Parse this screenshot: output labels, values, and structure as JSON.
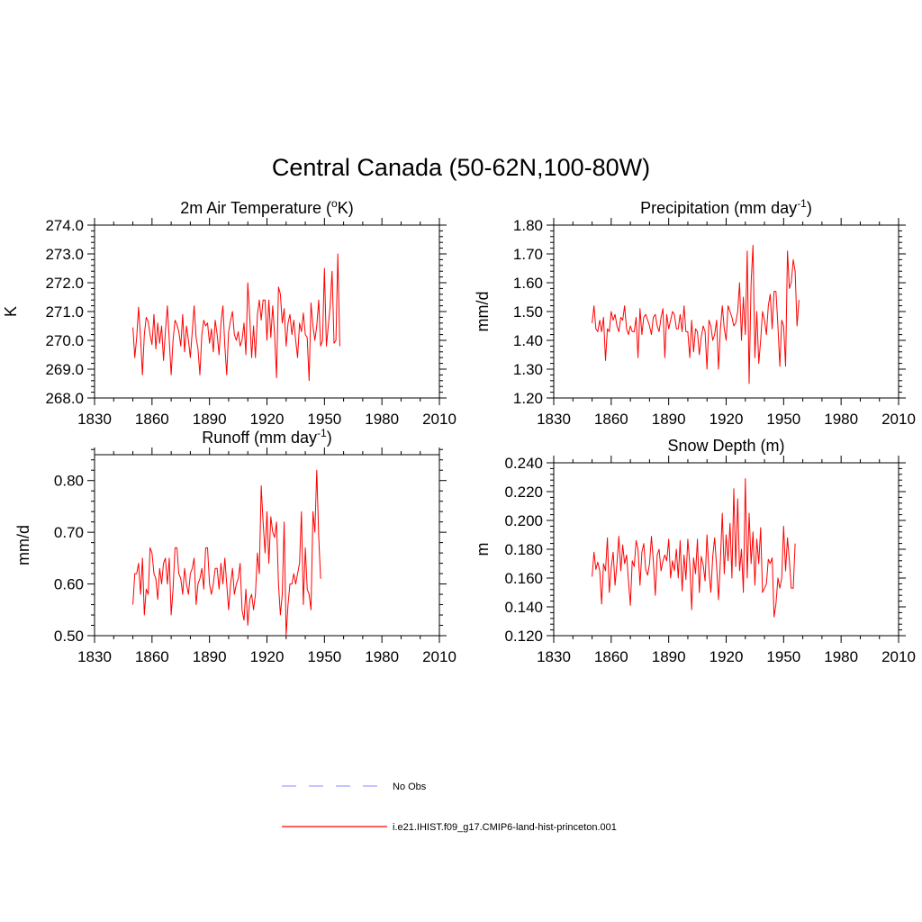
{
  "figure": {
    "title": "Central Canada (50-62N,100-80W)"
  },
  "legend": {
    "items": [
      {
        "label": "No Obs",
        "color": "#a0a0ff",
        "style": "dashed"
      },
      {
        "label": "i.e21.IHIST.f09_g17.CMIP6-land-hist-princeton.001",
        "color": "#ff0000",
        "style": "solid"
      }
    ]
  },
  "chart_data": [
    {
      "type": "line",
      "title_text": "2m Air Temperature (",
      "title_sup": "o",
      "title_suffix": "K)",
      "ylabel": "K",
      "xlim": [
        1830,
        2010
      ],
      "ylim": [
        268.0,
        274.0
      ],
      "xticks": [
        1830,
        1860,
        1890,
        1920,
        1950,
        1980,
        2010
      ],
      "yticks": [
        "268.0",
        "269.0",
        "270.0",
        "271.0",
        "272.0",
        "273.0",
        "274.0"
      ],
      "grid": false,
      "series": [
        {
          "color": "#ff0000",
          "x_start": 1850,
          "values": [
            270.45,
            269.4,
            270.1,
            271.15,
            270.1,
            268.8,
            270.2,
            270.8,
            270.65,
            270.2,
            269.85,
            270.9,
            269.7,
            270.6,
            269.9,
            270.5,
            269.3,
            270.3,
            271.2,
            270.0,
            268.8,
            270.0,
            270.7,
            270.55,
            270.3,
            269.8,
            270.9,
            269.6,
            270.5,
            270.0,
            269.4,
            270.3,
            271.2,
            270.1,
            269.7,
            268.8,
            270.2,
            270.7,
            270.5,
            270.6,
            269.9,
            270.4,
            269.6,
            270.7,
            270.2,
            269.5,
            270.6,
            271.2,
            269.8,
            268.8,
            270.3,
            270.7,
            271.0,
            270.2,
            270.0,
            270.3,
            269.8,
            270.0,
            270.6,
            269.5,
            272.0,
            270.8,
            269.4,
            270.5,
            269.4,
            270.9,
            271.4,
            270.7,
            271.4,
            271.4,
            270.0,
            271.4,
            270.1,
            271.2,
            270.2,
            268.7,
            271.85,
            271.6,
            270.6,
            271.1,
            269.8,
            270.6,
            270.9,
            270.2,
            270.7,
            270.0,
            269.4,
            270.6,
            270.3,
            270.95,
            270.2,
            270.1,
            268.6,
            271.3,
            270.5,
            270.0,
            270.5,
            271.4,
            269.8,
            270.0,
            272.5,
            269.8,
            270.5,
            271.2,
            272.4,
            269.9,
            270.0,
            273.0,
            269.8
          ]
        }
      ]
    },
    {
      "type": "line",
      "title_text": "Precipitation (mm day",
      "title_sup": "-1",
      "title_suffix": ")",
      "ylabel": "mm/d",
      "xlim": [
        1830,
        2010
      ],
      "ylim": [
        1.2,
        1.8
      ],
      "xticks": [
        1830,
        1860,
        1890,
        1920,
        1950,
        1980,
        2010
      ],
      "yticks": [
        "1.20",
        "1.30",
        "1.40",
        "1.50",
        "1.60",
        "1.70",
        "1.80"
      ],
      "grid": false,
      "series": [
        {
          "color": "#ff0000",
          "x_start": 1850,
          "values": [
            1.46,
            1.52,
            1.44,
            1.43,
            1.47,
            1.43,
            1.48,
            1.33,
            1.44,
            1.43,
            1.5,
            1.47,
            1.49,
            1.45,
            1.43,
            1.48,
            1.47,
            1.52,
            1.44,
            1.42,
            1.45,
            1.43,
            1.43,
            1.48,
            1.34,
            1.51,
            1.42,
            1.48,
            1.49,
            1.47,
            1.45,
            1.42,
            1.48,
            1.49,
            1.45,
            1.43,
            1.48,
            1.51,
            1.34,
            1.49,
            1.44,
            1.47,
            1.5,
            1.49,
            1.44,
            1.44,
            1.49,
            1.43,
            1.52,
            1.43,
            1.43,
            1.34,
            1.47,
            1.36,
            1.44,
            1.43,
            1.35,
            1.41,
            1.45,
            1.43,
            1.3,
            1.47,
            1.45,
            1.4,
            1.42,
            1.47,
            1.3,
            1.44,
            1.52,
            1.44,
            1.4,
            1.52,
            1.5,
            1.48,
            1.45,
            1.46,
            1.5,
            1.6,
            1.4,
            1.55,
            1.42,
            1.71,
            1.25,
            1.6,
            1.73,
            1.34,
            1.5,
            1.32,
            1.4,
            1.5,
            1.47,
            1.42,
            1.52,
            1.56,
            1.44,
            1.57,
            1.57,
            1.45,
            1.31,
            1.47,
            1.45,
            1.31,
            1.71,
            1.58,
            1.6,
            1.68,
            1.64,
            1.45,
            1.54
          ]
        }
      ]
    },
    {
      "type": "line",
      "title_text": "Runoff (mm day",
      "title_sup": "-1",
      "title_suffix": ")",
      "ylabel": "mm/d",
      "xlim": [
        1830,
        2010
      ],
      "ylim": [
        0.5,
        0.85
      ],
      "xticks": [
        1830,
        1860,
        1890,
        1920,
        1950,
        1980,
        2010
      ],
      "yticks": [
        "0.50",
        "0.60",
        "0.70",
        "0.80"
      ],
      "ytick_values": [
        0.5,
        0.6,
        0.7,
        0.8
      ],
      "grid": false,
      "series": [
        {
          "color": "#ff0000",
          "x_start": 1850,
          "values": [
            0.56,
            0.62,
            0.62,
            0.64,
            0.58,
            0.65,
            0.54,
            0.59,
            0.58,
            0.67,
            0.66,
            0.62,
            0.61,
            0.57,
            0.63,
            0.6,
            0.64,
            0.65,
            0.6,
            0.65,
            0.54,
            0.59,
            0.67,
            0.67,
            0.62,
            0.61,
            0.58,
            0.63,
            0.6,
            0.58,
            0.62,
            0.63,
            0.65,
            0.56,
            0.6,
            0.61,
            0.63,
            0.59,
            0.67,
            0.67,
            0.6,
            0.58,
            0.6,
            0.63,
            0.63,
            0.59,
            0.64,
            0.6,
            0.65,
            0.6,
            0.55,
            0.6,
            0.63,
            0.58,
            0.6,
            0.61,
            0.64,
            0.55,
            0.53,
            0.59,
            0.52,
            0.57,
            0.58,
            0.55,
            0.58,
            0.66,
            0.62,
            0.79,
            0.72,
            0.66,
            0.74,
            0.64,
            0.73,
            0.7,
            0.69,
            0.72,
            0.6,
            0.54,
            0.58,
            0.72,
            0.5,
            0.56,
            0.6,
            0.6,
            0.62,
            0.6,
            0.62,
            0.64,
            0.74,
            0.56,
            0.67,
            0.59,
            0.58,
            0.55,
            0.74,
            0.7,
            0.82,
            0.69,
            0.61
          ]
        }
      ]
    },
    {
      "type": "line",
      "title_text": "Snow Depth (m)",
      "title_sup": "",
      "title_suffix": "",
      "ylabel": "m",
      "xlim": [
        1830,
        2010
      ],
      "ylim": [
        0.12,
        0.24
      ],
      "xticks": [
        1830,
        1860,
        1890,
        1920,
        1950,
        1980,
        2010
      ],
      "yticks": [
        "0.120",
        "0.140",
        "0.160",
        "0.180",
        "0.200",
        "0.220",
        "0.240"
      ],
      "grid": false,
      "series": [
        {
          "color": "#ff0000",
          "x_start": 1850,
          "values": [
            0.161,
            0.178,
            0.166,
            0.171,
            0.165,
            0.142,
            0.17,
            0.165,
            0.188,
            0.15,
            0.167,
            0.178,
            0.155,
            0.17,
            0.189,
            0.165,
            0.183,
            0.17,
            0.176,
            0.158,
            0.141,
            0.172,
            0.168,
            0.186,
            0.18,
            0.155,
            0.178,
            0.184,
            0.166,
            0.162,
            0.17,
            0.189,
            0.172,
            0.148,
            0.176,
            0.18,
            0.165,
            0.172,
            0.176,
            0.172,
            0.187,
            0.16,
            0.172,
            0.165,
            0.18,
            0.16,
            0.186,
            0.151,
            0.176,
            0.159,
            0.187,
            0.17,
            0.138,
            0.174,
            0.163,
            0.187,
            0.15,
            0.175,
            0.169,
            0.158,
            0.19,
            0.165,
            0.15,
            0.175,
            0.188,
            0.168,
            0.145,
            0.172,
            0.205,
            0.163,
            0.19,
            0.172,
            0.198,
            0.16,
            0.222,
            0.168,
            0.215,
            0.165,
            0.18,
            0.15,
            0.229,
            0.16,
            0.205,
            0.17,
            0.192,
            0.155,
            0.187,
            0.17,
            0.195,
            0.15,
            0.153,
            0.156,
            0.173,
            0.17,
            0.174,
            0.133,
            0.142,
            0.16,
            0.153,
            0.16,
            0.196,
            0.165,
            0.188,
            0.172,
            0.153,
            0.153,
            0.184
          ]
        }
      ]
    }
  ]
}
